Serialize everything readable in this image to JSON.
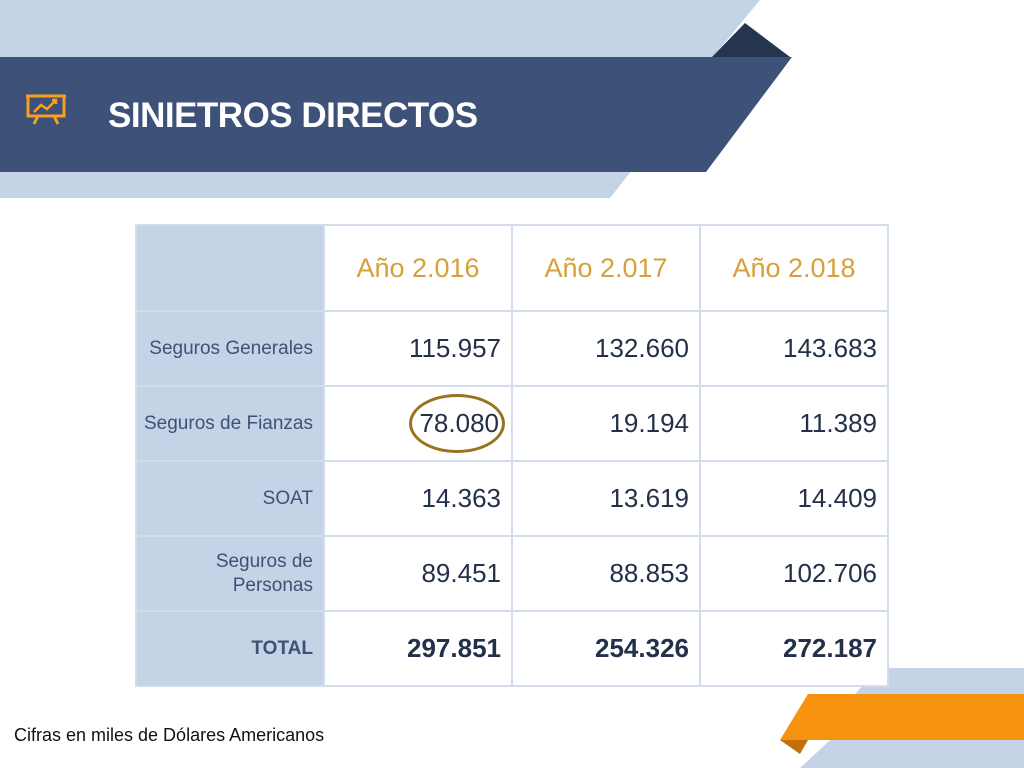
{
  "header": {
    "title": "SINIETROS DIRECTOS",
    "icon": "presentation-chart-icon"
  },
  "colors": {
    "banner": "#3d5179",
    "banner_light": "#c5d3e7",
    "banner_dark": "#253550",
    "accent_gold": "#d6a03a",
    "accent_orange": "#f7920f",
    "highlight_circle": "#9a7220"
  },
  "table": {
    "columns": [
      "Año 2.016",
      "Año 2.017",
      "Año 2.018"
    ],
    "rows": [
      {
        "label": "Seguros Generales",
        "values": [
          "115.957",
          "132.660",
          "143.683"
        ]
      },
      {
        "label": "Seguros de Fianzas",
        "values": [
          "78.080",
          "19.194",
          "11.389"
        ]
      },
      {
        "label": "SOAT",
        "values": [
          "14.363",
          "13.619",
          "14.409"
        ]
      },
      {
        "label": "Seguros de Personas",
        "values": [
          "89.451",
          "88.853",
          "102.706"
        ]
      },
      {
        "label": "TOTAL",
        "values": [
          "297.851",
          "254.326",
          "272.187"
        ]
      }
    ]
  },
  "footnote": "Cifras en miles de Dólares Americanos"
}
